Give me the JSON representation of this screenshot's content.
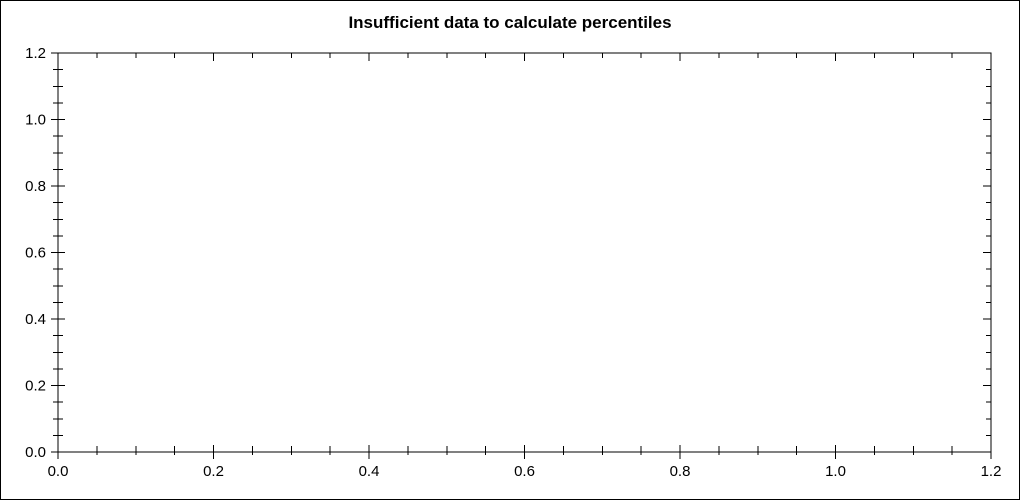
{
  "colors": {
    "background": "#ffffff",
    "frame": "#000000",
    "text": "#000000"
  },
  "chart_data": {
    "type": "scatter",
    "title": "Insufficient data to calculate percentiles",
    "series": [],
    "grid": false,
    "legend": null,
    "x_axis": {
      "min": 0.0,
      "max": 1.2,
      "major_step": 0.2,
      "minor_step": 0.05,
      "tick_labels": [
        "0.0",
        "0.2",
        "0.4",
        "0.6",
        "0.8",
        "1.0",
        "1.2"
      ]
    },
    "y_axis": {
      "min": 0.0,
      "max": 1.2,
      "major_step": 0.2,
      "minor_step": 0.05,
      "tick_labels": [
        "0.0",
        "0.2",
        "0.4",
        "0.6",
        "0.8",
        "1.0",
        "1.2"
      ]
    }
  }
}
